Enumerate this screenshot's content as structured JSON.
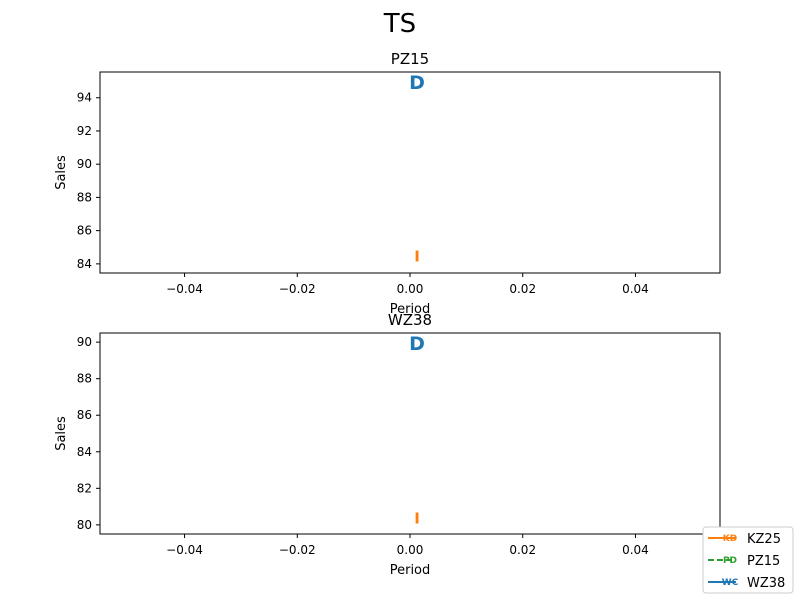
{
  "figure": {
    "suptitle": "TS"
  },
  "legend": {
    "placement": "lower-right",
    "entries": [
      {
        "name": "KZ25",
        "marker_text": "KD",
        "color": "#ff7f0e",
        "linestyle": "solid"
      },
      {
        "name": "PZ15",
        "marker_text": "PD",
        "color": "#2ca02c",
        "linestyle": "dashed"
      },
      {
        "name": "WZ38",
        "marker_text": "WC",
        "color": "#1f77b4",
        "linestyle": "solid"
      }
    ]
  },
  "chart_data": [
    {
      "type": "scatter",
      "title": "PZ15",
      "xlabel": "Period",
      "ylabel": "Sales",
      "xlim": [
        -0.055,
        0.055
      ],
      "ylim": [
        83.45,
        95.55
      ],
      "xticks": [
        -0.04,
        -0.02,
        0.0,
        0.02,
        0.04
      ],
      "xtick_labels": [
        "−0.04",
        "−0.02",
        "0.00",
        "0.02",
        "0.04"
      ],
      "yticks": [
        84,
        86,
        88,
        90,
        92,
        94
      ],
      "ytick_labels": [
        "84",
        "86",
        "88",
        "90",
        "92",
        "94"
      ],
      "grid": false,
      "annotations": [
        {
          "text": "D",
          "x": 0.0,
          "y": 95.0,
          "color": "#1f77b4",
          "weight": "bold"
        },
        {
          "text": "I",
          "x": 0.0,
          "y": 84.5,
          "color": "#ff7f0e",
          "weight": "bold"
        }
      ]
    },
    {
      "type": "scatter",
      "title": "WZ38",
      "xlabel": "Period",
      "ylabel": "Sales",
      "xlim": [
        -0.055,
        0.055
      ],
      "ylim": [
        79.5,
        90.5
      ],
      "xticks": [
        -0.04,
        -0.02,
        0.0,
        0.02,
        0.04
      ],
      "xtick_labels": [
        "−0.04",
        "−0.02",
        "0.00",
        "0.02",
        "0.04"
      ],
      "yticks": [
        80,
        82,
        84,
        86,
        88,
        90
      ],
      "ytick_labels": [
        "80",
        "82",
        "84",
        "86",
        "88",
        "90"
      ],
      "grid": false,
      "annotations": [
        {
          "text": "D",
          "x": 0.0,
          "y": 90.0,
          "color": "#1f77b4",
          "weight": "bold"
        },
        {
          "text": "I",
          "x": 0.0,
          "y": 80.4,
          "color": "#ff7f0e",
          "weight": "bold"
        }
      ]
    }
  ]
}
